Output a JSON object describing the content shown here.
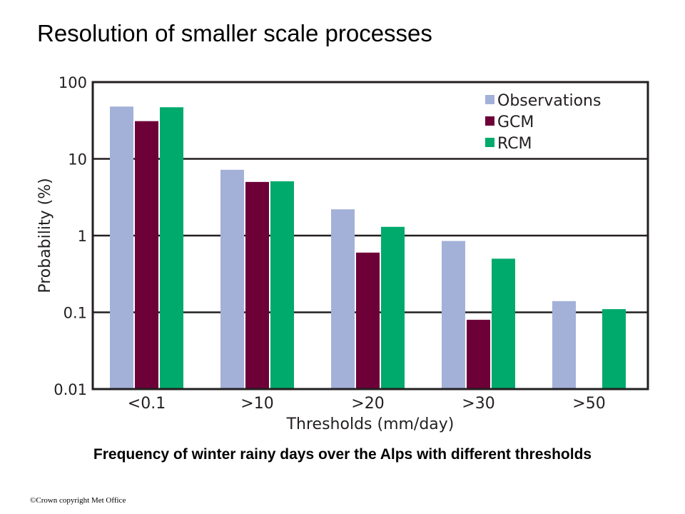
{
  "slide": {
    "title": "Resolution of smaller scale processes",
    "caption": "Frequency of winter rainy days over the Alps with different thresholds",
    "copyright": "©Crown copyright   Met Office"
  },
  "chart_data": {
    "type": "bar",
    "title": "",
    "xlabel": "Thresholds (mm/day)",
    "ylabel": "Probability (%)",
    "yscale": "log",
    "ylim": [
      0.01,
      100
    ],
    "yticks": [
      0.01,
      0.1,
      1,
      10,
      100
    ],
    "ytick_labels": [
      "0.01",
      "0.1",
      "1",
      "10",
      "100"
    ],
    "grid": "horizontal at major ticks",
    "legend_position": "top-right",
    "categories": [
      "<0.1",
      ">10",
      ">20",
      ">30",
      ">50"
    ],
    "series": [
      {
        "name": "Observations",
        "color": "#a3b1d9",
        "values": [
          48,
          7.2,
          2.2,
          0.85,
          0.14
        ]
      },
      {
        "name": "GCM",
        "color": "#6e0038",
        "values": [
          31,
          5.0,
          0.6,
          0.08,
          null
        ]
      },
      {
        "name": "RCM",
        "color": "#00aa6c",
        "values": [
          47,
          5.1,
          1.3,
          0.5,
          0.11
        ]
      }
    ]
  }
}
